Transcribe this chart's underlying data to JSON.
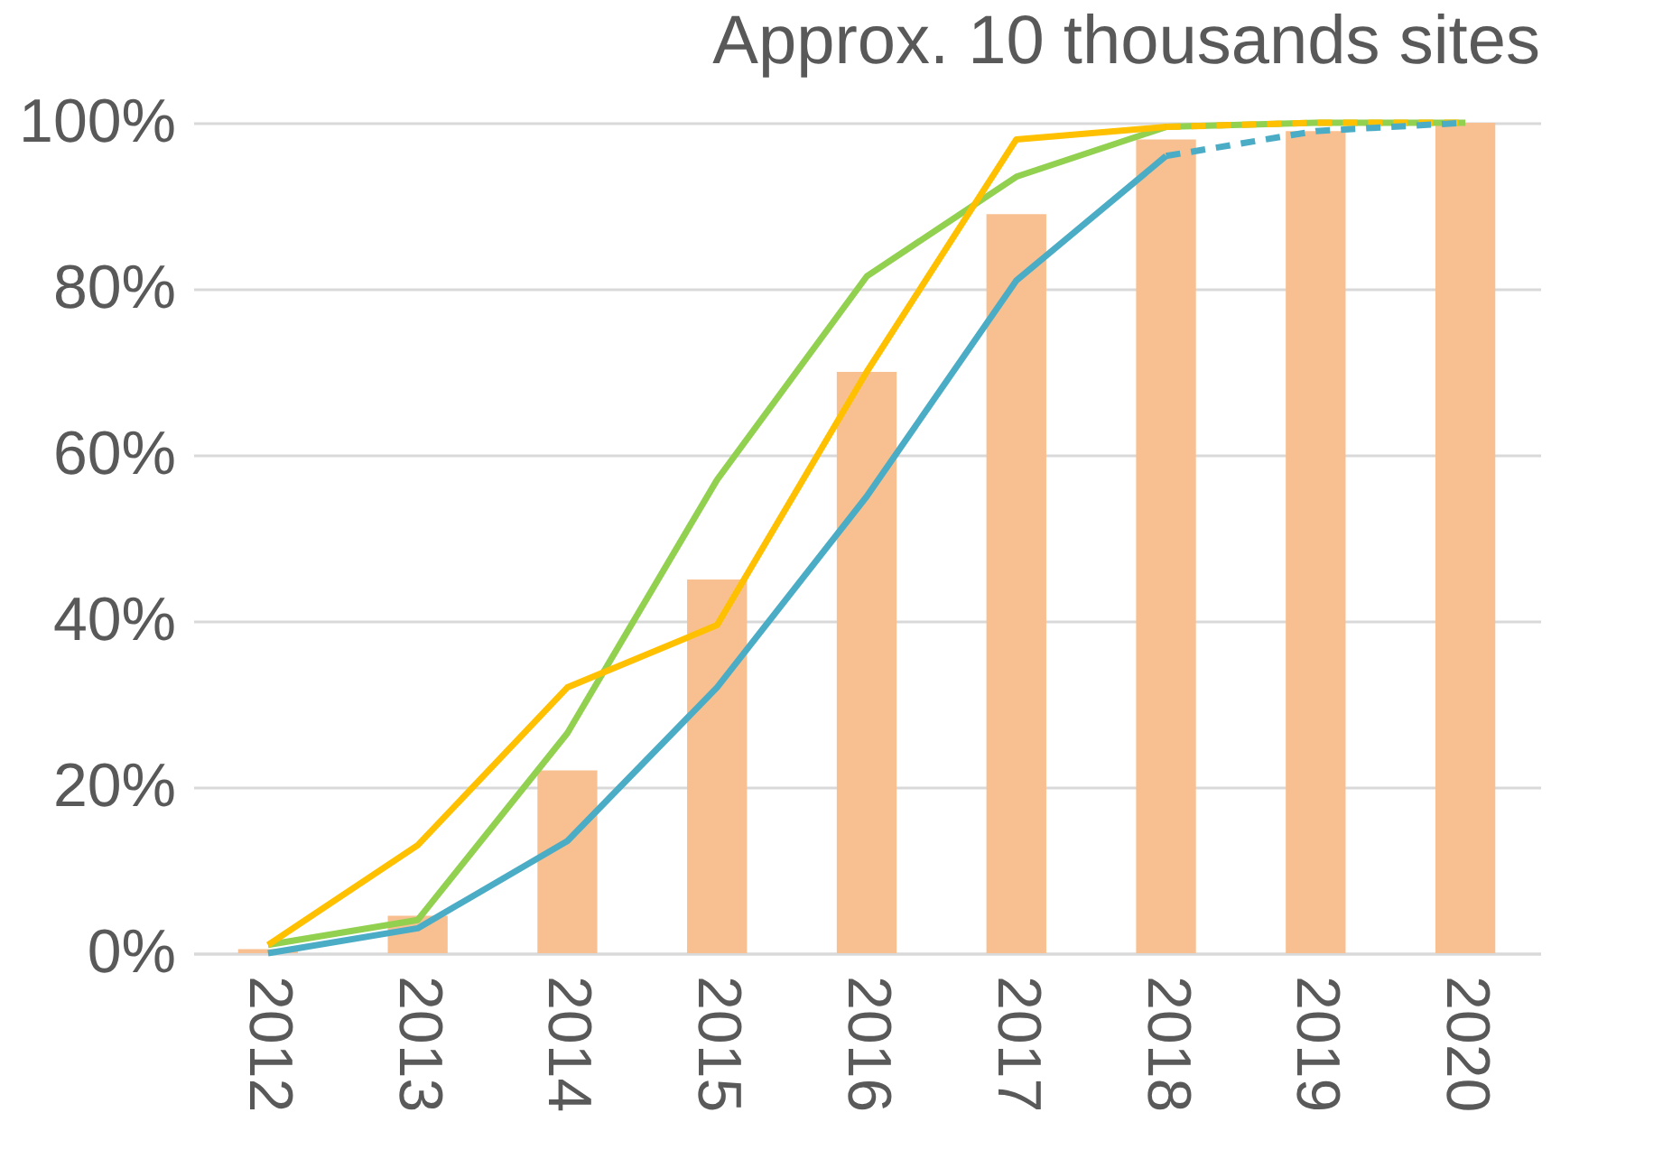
{
  "chart_data": {
    "type": "bar",
    "title": "Approx. 10 thousands sites",
    "categories": [
      "2012",
      "2013",
      "2014",
      "2015",
      "2016",
      "2017",
      "2018",
      "2019",
      "2020"
    ],
    "series": [
      {
        "color": "#f8c090",
        "values": [
          0.5,
          4.5,
          22,
          45,
          70,
          89,
          98,
          99,
          100
        ]
      },
      {
        "type": "line",
        "color": "#92d050",
        "line_style": "solid",
        "values": [
          1,
          4,
          26.5,
          57,
          81.5,
          93.5,
          99.5,
          100,
          100
        ]
      },
      {
        "type": "line",
        "color": "#ffc000",
        "line_style": "solid",
        "values": [
          1,
          13,
          32,
          39.5,
          70,
          98,
          99.5,
          null,
          null
        ]
      },
      {
        "type": "line",
        "color": "#ffc000",
        "line_style": "dashed",
        "values": [
          null,
          null,
          null,
          null,
          null,
          null,
          99.5,
          100,
          100
        ]
      },
      {
        "type": "line",
        "color": "#4bacc6",
        "line_style": "solid",
        "values": [
          0,
          3,
          13.5,
          32,
          55,
          81,
          96,
          null,
          null
        ]
      },
      {
        "type": "line",
        "color": "#4bacc6",
        "line_style": "dashed",
        "values": [
          null,
          null,
          null,
          null,
          null,
          null,
          96,
          99,
          100
        ]
      }
    ],
    "ylim": [
      0,
      100
    ],
    "yticks": [
      {
        "value": 0,
        "label": "0%"
      },
      {
        "value": 20,
        "label": "20%"
      },
      {
        "value": 40,
        "label": "40%"
      },
      {
        "value": 60,
        "label": "60%"
      },
      {
        "value": 80,
        "label": "80%"
      },
      {
        "value": 100,
        "label": "100%"
      }
    ],
    "grid": "y",
    "marker": "none"
  }
}
